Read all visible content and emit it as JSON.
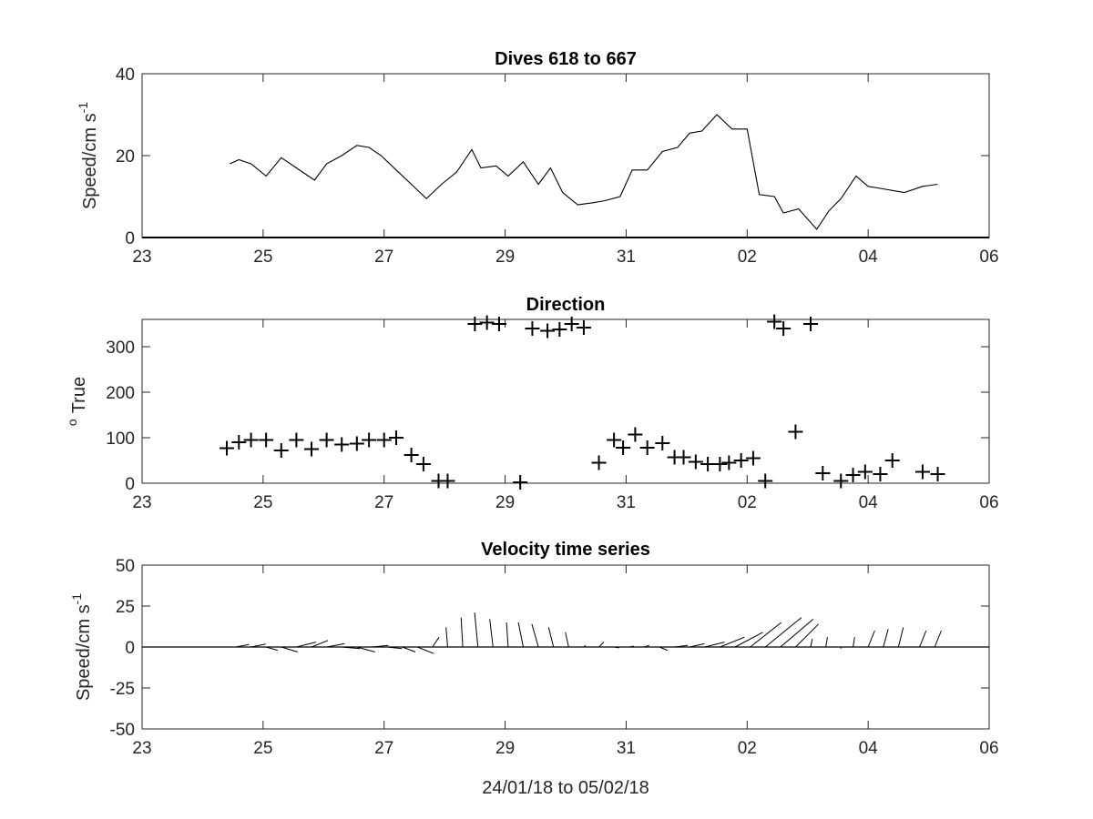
{
  "figure": {
    "xlabel": "24/01/18 to 05/02/18"
  },
  "chart_data": [
    {
      "type": "line",
      "title": "Dives 618 to 667",
      "ylabel": "Speed/cm s",
      "ylabel_sup": "-1",
      "xlabel": "",
      "x_ticks": [
        "23",
        "25",
        "27",
        "29",
        "31",
        "02",
        "04",
        "06"
      ],
      "y_ticks": [
        "0",
        "20",
        "40"
      ],
      "xlim": [
        0,
        14
      ],
      "ylim": [
        0,
        40
      ],
      "series": [
        {
          "x": [
            1.45,
            1.6,
            1.8,
            2.05,
            2.3,
            2.55,
            2.85,
            3.05,
            3.3,
            3.55,
            3.75,
            3.95,
            4.2,
            4.45,
            4.7,
            4.95,
            5.2,
            5.45,
            5.6,
            5.85,
            6.05,
            6.3,
            6.55,
            6.75,
            6.95,
            7.2,
            7.45,
            7.65,
            7.9,
            8.1,
            8.35,
            8.6,
            8.85,
            9.05,
            9.25,
            9.5,
            9.75,
            10,
            10.2,
            10.45,
            10.6,
            10.85,
            11.15,
            11.35,
            11.55,
            11.8,
            12,
            12.2,
            12.4,
            12.6,
            12.9,
            13.15
          ],
          "values": [
            18,
            19,
            18,
            15,
            19.5,
            17,
            14,
            18,
            20,
            22.5,
            22,
            20,
            16.5,
            13,
            9.5,
            13,
            16,
            21.5,
            17,
            17.5,
            15,
            18.5,
            13,
            17,
            11,
            8,
            8.5,
            9,
            10,
            16.5,
            16.5,
            21,
            22,
            25.5,
            26,
            30,
            26.5,
            26.5,
            10.5,
            10,
            6,
            7,
            2,
            6.5,
            9.5,
            15,
            12.5,
            12,
            11.5,
            11,
            12.5,
            13
          ]
        }
      ]
    },
    {
      "type": "scatter",
      "title": "Direction",
      "ylabel": "True",
      "ylabel_sup": "o",
      "xlabel": "",
      "x_ticks": [
        "23",
        "25",
        "27",
        "29",
        "31",
        "02",
        "04",
        "06"
      ],
      "y_ticks": [
        "0",
        "100",
        "200",
        "300"
      ],
      "xlim": [
        0,
        14
      ],
      "ylim": [
        0,
        360
      ],
      "marker": "+",
      "series": [
        {
          "x": [
            1.4,
            1.6,
            1.8,
            2.05,
            2.3,
            2.55,
            2.8,
            3.05,
            3.3,
            3.55,
            3.75,
            4,
            4.2,
            4.45,
            4.65,
            4.9,
            5.05,
            5.5,
            5.7,
            5.9,
            6.25,
            6.45,
            6.7,
            6.9,
            7.1,
            7.3,
            7.55,
            7.8,
            7.95,
            8.15,
            8.35,
            8.6,
            8.8,
            8.95,
            9.15,
            9.35,
            9.55,
            9.7,
            9.9,
            10.1,
            10.3,
            10.45,
            10.6,
            10.8,
            11.05,
            11.25,
            11.55,
            11.75,
            11.95,
            12.2,
            12.4,
            12.9,
            13.15
          ],
          "values": [
            77,
            90,
            95,
            95,
            72,
            95,
            75,
            95,
            85,
            87,
            95,
            95,
            100,
            62,
            42,
            5,
            5,
            350,
            353,
            350,
            2,
            340,
            335,
            338,
            350,
            342,
            45,
            95,
            78,
            107,
            78,
            88,
            57,
            57,
            47,
            42,
            42,
            45,
            50,
            55,
            5,
            355,
            340,
            113,
            350,
            22,
            5,
            18,
            25,
            20,
            50,
            25,
            20
          ]
        }
      ]
    },
    {
      "type": "quiver",
      "title": "Velocity time series",
      "ylabel": "Speed/cm s",
      "ylabel_sup": "-1",
      "xlabel": "24/01/18 to 05/02/18",
      "x_ticks": [
        "23",
        "25",
        "27",
        "29",
        "31",
        "02",
        "04",
        "06"
      ],
      "y_ticks": [
        "-50",
        "-25",
        "0",
        "25",
        "50"
      ],
      "xlim": [
        0,
        14
      ],
      "ylim": [
        -50,
        50
      ],
      "vectors": [
        {
          "x": 1.55,
          "u": 8,
          "v": 1.5
        },
        {
          "x": 1.8,
          "u": 9,
          "v": 1.8
        },
        {
          "x": 2.05,
          "u": 7,
          "v": -2
        },
        {
          "x": 2.3,
          "u": 10,
          "v": -3
        },
        {
          "x": 2.55,
          "u": 12,
          "v": 3
        },
        {
          "x": 2.8,
          "u": 10,
          "v": 4
        },
        {
          "x": 3.05,
          "u": 11,
          "v": 2
        },
        {
          "x": 3.3,
          "u": 11,
          "v": -1
        },
        {
          "x": 3.55,
          "u": 11,
          "v": -3
        },
        {
          "x": 3.8,
          "u": 10,
          "v": 1
        },
        {
          "x": 4.05,
          "u": 9,
          "v": -1
        },
        {
          "x": 4.3,
          "u": 8,
          "v": -3
        },
        {
          "x": 4.55,
          "u": 10,
          "v": -4
        },
        {
          "x": 4.8,
          "u": 4,
          "v": 6
        },
        {
          "x": 5.05,
          "u": -1,
          "v": 12
        },
        {
          "x": 5.3,
          "u": -1,
          "v": 18
        },
        {
          "x": 5.55,
          "u": -2,
          "v": 21
        },
        {
          "x": 5.8,
          "u": -2,
          "v": 17
        },
        {
          "x": 6.05,
          "u": -1,
          "v": 15
        },
        {
          "x": 6.3,
          "u": -3,
          "v": 15
        },
        {
          "x": 6.55,
          "u": -4,
          "v": 14
        },
        {
          "x": 6.8,
          "u": -3,
          "v": 12
        },
        {
          "x": 7.05,
          "u": -2,
          "v": 9
        },
        {
          "x": 7.3,
          "u": 1,
          "v": 1
        },
        {
          "x": 7.55,
          "u": 3,
          "v": 3
        },
        {
          "x": 7.8,
          "u": 3,
          "v": -0.5
        },
        {
          "x": 8.05,
          "u": 3,
          "v": 0.5
        },
        {
          "x": 8.3,
          "u": 3,
          "v": 1
        },
        {
          "x": 8.55,
          "u": 5,
          "v": -2
        },
        {
          "x": 8.8,
          "u": 8,
          "v": 1
        },
        {
          "x": 9.05,
          "u": 9,
          "v": 2
        },
        {
          "x": 9.3,
          "u": 12,
          "v": 3
        },
        {
          "x": 9.55,
          "u": 15,
          "v": 6
        },
        {
          "x": 9.8,
          "u": 17,
          "v": 9
        },
        {
          "x": 10.05,
          "u": 19,
          "v": 15
        },
        {
          "x": 10.3,
          "u": 22,
          "v": 18
        },
        {
          "x": 10.55,
          "u": 20,
          "v": 17
        },
        {
          "x": 10.8,
          "u": 14,
          "v": 14
        },
        {
          "x": 11.05,
          "u": 1,
          "v": 5
        },
        {
          "x": 11.3,
          "u": 1,
          "v": 6
        },
        {
          "x": 11.55,
          "u": 0,
          "v": -1
        },
        {
          "x": 11.75,
          "u": 1,
          "v": 6
        },
        {
          "x": 12.0,
          "u": 4,
          "v": 10
        },
        {
          "x": 12.25,
          "u": 3,
          "v": 11
        },
        {
          "x": 12.5,
          "u": 3,
          "v": 12
        },
        {
          "x": 12.85,
          "u": 4,
          "v": 10
        },
        {
          "x": 13.1,
          "u": 4,
          "v": 10
        }
      ]
    }
  ]
}
